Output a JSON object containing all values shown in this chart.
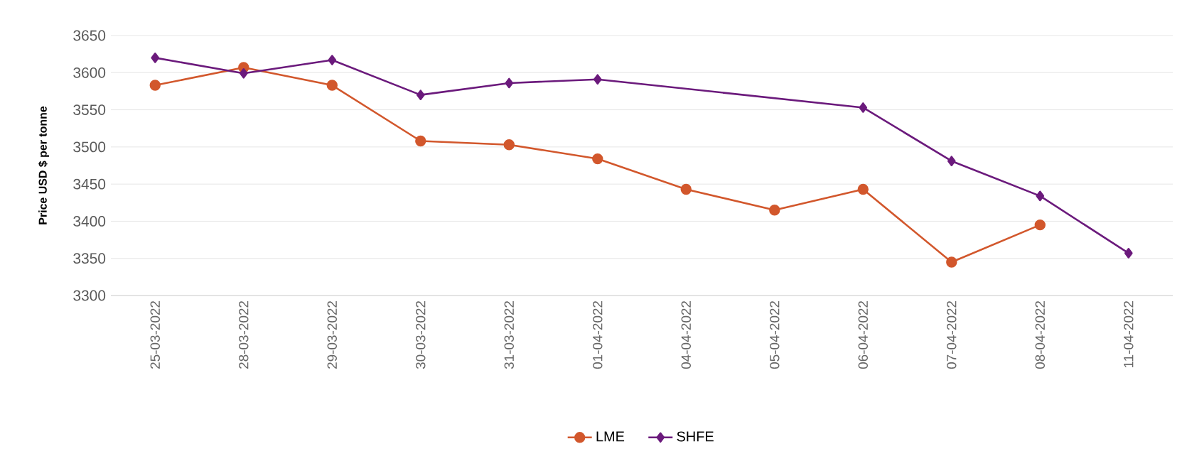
{
  "chart_data": {
    "type": "line",
    "ylabel": "Price USD $ per tonne",
    "categories": [
      "25-03-2022",
      "28-03-2022",
      "29-03-2022",
      "30-03-2022",
      "31-03-2022",
      "01-04-2022",
      "04-04-2022",
      "05-04-2022",
      "06-04-2022",
      "07-04-2022",
      "08-04-2022",
      "11-04-2022"
    ],
    "series": [
      {
        "name": "LME",
        "color": "#d2572c",
        "marker": "circle",
        "values": [
          3583,
          3607,
          3583,
          3508,
          3503,
          3484,
          3443,
          3415,
          3443,
          3345,
          3395,
          null
        ]
      },
      {
        "name": "SHFE",
        "color": "#6b1a7c",
        "marker": "diamond",
        "values": [
          3620,
          3599,
          3617,
          3570,
          3586,
          3591,
          null,
          null,
          3553,
          3481,
          3434,
          3357
        ]
      }
    ],
    "ylim": [
      3300,
      3650
    ],
    "yticks": [
      3300,
      3350,
      3400,
      3450,
      3500,
      3550,
      3600,
      3650
    ],
    "grid": "y",
    "legend": "bottom"
  }
}
